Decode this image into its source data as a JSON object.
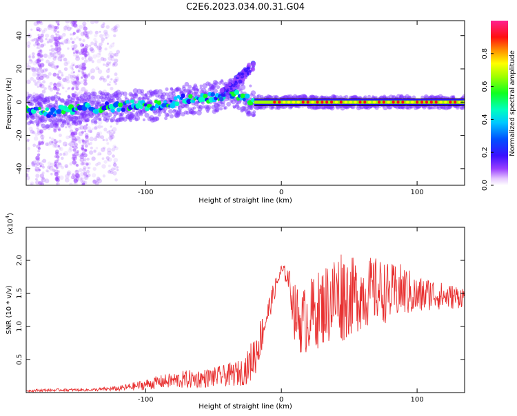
{
  "title": "C2E6.2023.034.00.31.G04",
  "chart_data": [
    {
      "type": "heatmap",
      "xlabel": "Height of straight line (km)",
      "ylabel": "Frequency (Hz)",
      "xlim": [
        -188,
        135
      ],
      "ylim": [
        -50,
        49
      ],
      "xticks": [
        -100,
        0,
        100
      ],
      "xtick_labels": [
        "-100",
        "0",
        "100"
      ],
      "yticks": [
        -40,
        -20,
        0,
        20,
        40
      ],
      "ytick_labels": [
        "-40",
        "-20",
        "0",
        "20",
        "40"
      ],
      "colorbar": {
        "label": "Normalized spectral amplitude",
        "range": [
          0,
          1
        ],
        "ticks": [
          0,
          0.2,
          0.4,
          0.6,
          0.8
        ],
        "tick_labels": [
          "0.0",
          "0.2",
          "0.4",
          "0.6",
          "0.8"
        ]
      },
      "ridge": {
        "x": [
          -188,
          -170,
          -150,
          -130,
          -110,
          -90,
          -70,
          -50,
          -40,
          -30,
          -25,
          -20,
          -10,
          0,
          20,
          40,
          60,
          80,
          100,
          120,
          135
        ],
        "freq": [
          -4,
          -6,
          -4,
          -3,
          -2,
          -2,
          2,
          3,
          5,
          4,
          2,
          0,
          0,
          0,
          0,
          0,
          0,
          0,
          0,
          0,
          0
        ]
      },
      "legend": "none"
    },
    {
      "type": "line",
      "xlabel": "Height of straight line (km)",
      "ylabel": "SNR (10 * v/v)",
      "y_scale_label": "(x10",
      "y_scale_exp": "4",
      "y_scale_close": ")",
      "xlim": [
        -188,
        135
      ],
      "ylim": [
        0,
        2.5
      ],
      "xticks": [
        -100,
        0,
        100
      ],
      "xtick_labels": [
        "-100",
        "0",
        "100"
      ],
      "yticks": [
        0.5,
        1.0,
        1.5,
        2.0
      ],
      "ytick_labels": [
        "0.5",
        "1.0",
        "1.5",
        "2.0"
      ],
      "series": [
        {
          "color": "#e83030",
          "x": [
            -188,
            -160,
            -140,
            -120,
            -100,
            -90,
            -80,
            -70,
            -60,
            -50,
            -40,
            -30,
            -25,
            -20,
            -15,
            -10,
            -5,
            0,
            5,
            10,
            15,
            20,
            30,
            40,
            45,
            50,
            60,
            70,
            80,
            90,
            100,
            110,
            120,
            130,
            135
          ],
          "mean": [
            0.03,
            0.04,
            0.04,
            0.06,
            0.12,
            0.16,
            0.18,
            0.2,
            0.21,
            0.23,
            0.26,
            0.3,
            0.38,
            0.55,
            0.85,
            1.2,
            1.55,
            1.85,
            1.75,
            1.2,
            1.05,
            1.15,
            1.3,
            1.45,
            1.5,
            1.45,
            1.5,
            1.55,
            1.5,
            1.55,
            1.45,
            1.5,
            1.45,
            1.45,
            1.45
          ],
          "amp": [
            0.02,
            0.02,
            0.02,
            0.04,
            0.08,
            0.1,
            0.12,
            0.14,
            0.14,
            0.15,
            0.17,
            0.2,
            0.25,
            0.35,
            0.3,
            0.2,
            0.15,
            0.1,
            0.15,
            0.45,
            0.5,
            0.55,
            0.6,
            0.7,
            0.75,
            0.6,
            0.55,
            0.5,
            0.45,
            0.4,
            0.3,
            0.25,
            0.2,
            0.18,
            0.15
          ]
        }
      ]
    }
  ]
}
